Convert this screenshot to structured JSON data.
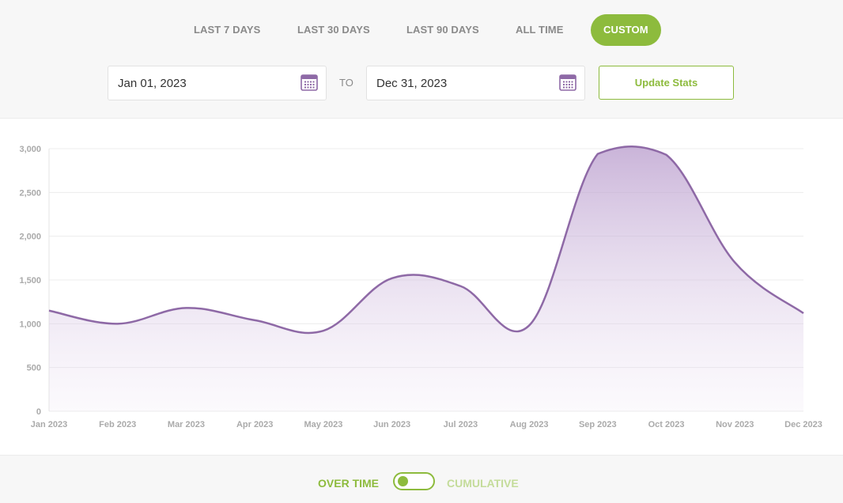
{
  "range_tabs": [
    {
      "label": "LAST 7 DAYS",
      "active": false
    },
    {
      "label": "LAST 30 DAYS",
      "active": false
    },
    {
      "label": "LAST 90 DAYS",
      "active": false
    },
    {
      "label": "ALL TIME",
      "active": false
    },
    {
      "label": "CUSTOM",
      "active": true
    }
  ],
  "date_range": {
    "start": "Jan 01, 2023",
    "to_label": "TO",
    "end": "Dec 31, 2023",
    "update_label": "Update Stats"
  },
  "view_mode": {
    "over_time_label": "OVER TIME",
    "cumulative_label": "CUMULATIVE",
    "selected": "OVER TIME"
  },
  "colors": {
    "accent_green": "#8dbb3d",
    "line_purple": "#8e69a6",
    "calendar_purple": "#8e69a6"
  },
  "icons": {
    "calendar": "calendar-icon"
  },
  "chart_data": {
    "type": "area",
    "x": [
      "Jan 2023",
      "Feb 2023",
      "Mar 2023",
      "Apr 2023",
      "May 2023",
      "Jun 2023",
      "Jul 2023",
      "Aug 2023",
      "Sep 2023",
      "Oct 2023",
      "Nov 2023",
      "Dec 2023"
    ],
    "values": [
      1150,
      1000,
      1180,
      1040,
      920,
      1520,
      1430,
      980,
      2940,
      2930,
      1700,
      1120
    ],
    "ylim": [
      0,
      3000
    ],
    "yticks": [
      0,
      500,
      1000,
      1500,
      2000,
      2500,
      3000
    ],
    "ytick_labels": [
      "0",
      "500",
      "1,000",
      "1,500",
      "2,000",
      "2,500",
      "3,000"
    ],
    "grid": true,
    "legend": "none"
  }
}
